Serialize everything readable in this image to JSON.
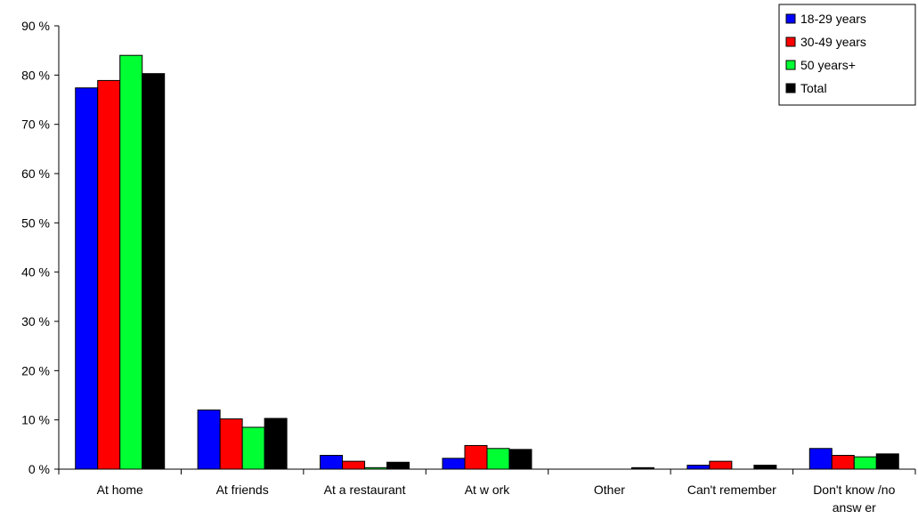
{
  "chart_data": {
    "type": "bar",
    "title": "",
    "xlabel": "",
    "ylabel": "",
    "ylim": [
      0,
      90
    ],
    "yticks": [
      0,
      10,
      20,
      30,
      40,
      50,
      60,
      70,
      80,
      90
    ],
    "ytick_suffix": " %",
    "grid": false,
    "legend_position": "top-right",
    "categories": [
      "At home",
      "At friends",
      "At a restaurant",
      "At w ork",
      "Other",
      "Can't remember",
      "Don't know /no answ er"
    ],
    "series": [
      {
        "name": "18-29 years",
        "color": "#0000ff",
        "values": [
          77.4,
          12.0,
          2.8,
          2.2,
          0.0,
          0.8,
          4.2
        ]
      },
      {
        "name": "30-49 years",
        "color": "#ff0000",
        "values": [
          78.9,
          10.2,
          1.6,
          4.8,
          0.0,
          1.6,
          2.8
        ]
      },
      {
        "name": "50 years+",
        "color": "#00ff33",
        "values": [
          84.0,
          8.5,
          0.3,
          4.2,
          0.0,
          0.0,
          2.5
        ]
      },
      {
        "name": "Total",
        "color": "#000000",
        "values": [
          80.3,
          10.3,
          1.4,
          4.0,
          0.3,
          0.8,
          3.1
        ]
      }
    ]
  }
}
